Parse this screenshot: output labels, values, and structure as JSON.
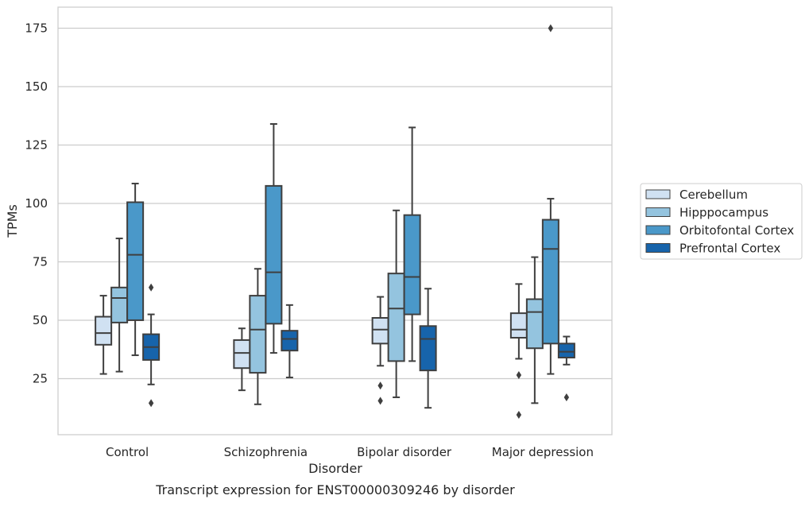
{
  "chart_data": {
    "type": "boxplot",
    "caption": "Transcript expression for ENST00000309246 by disorder",
    "xlabel": "Disorder",
    "ylabel": "TPMs",
    "ylim": [
      1,
      184
    ],
    "yticks": [
      25,
      50,
      75,
      100,
      125,
      150,
      175
    ],
    "grid": true,
    "legend_position": "right",
    "categories": [
      "Control",
      "Schizophrenia",
      "Bipolar disorder",
      "Major depression"
    ],
    "series": [
      {
        "name": "Cerebellum",
        "color": "#d0e1f2",
        "boxes": [
          {
            "whisker_low": 27,
            "q1": 39.5,
            "median": 44.5,
            "q3": 51.5,
            "whisker_high": 60.5,
            "outliers": []
          },
          {
            "whisker_low": 20,
            "q1": 29.5,
            "median": 36,
            "q3": 41.5,
            "whisker_high": 46.5,
            "outliers": []
          },
          {
            "whisker_low": 30.5,
            "q1": 40,
            "median": 46,
            "q3": 51,
            "whisker_high": 60,
            "outliers": [
              22,
              15.5
            ]
          },
          {
            "whisker_low": 33.5,
            "q1": 42.5,
            "median": 46,
            "q3": 53,
            "whisker_high": 65.5,
            "outliers": [
              26.5,
              9.5
            ]
          }
        ]
      },
      {
        "name": "Hipppocampus",
        "color": "#94c4df",
        "boxes": [
          {
            "whisker_low": 28,
            "q1": 49,
            "median": 59.5,
            "q3": 64,
            "whisker_high": 85,
            "outliers": []
          },
          {
            "whisker_low": 14,
            "q1": 27.5,
            "median": 46,
            "q3": 60.5,
            "whisker_high": 72,
            "outliers": []
          },
          {
            "whisker_low": 17,
            "q1": 32.5,
            "median": 55,
            "q3": 70,
            "whisker_high": 97,
            "outliers": []
          },
          {
            "whisker_low": 14.5,
            "q1": 38,
            "median": 53.5,
            "q3": 59,
            "whisker_high": 77,
            "outliers": []
          }
        ]
      },
      {
        "name": "Orbitofontal Cortex",
        "color": "#4a98c9",
        "boxes": [
          {
            "whisker_low": 35,
            "q1": 50,
            "median": 78,
            "q3": 100.5,
            "whisker_high": 108.5,
            "outliers": []
          },
          {
            "whisker_low": 36,
            "q1": 48.5,
            "median": 70.5,
            "q3": 107.5,
            "whisker_high": 134,
            "outliers": []
          },
          {
            "whisker_low": 32.5,
            "q1": 52.5,
            "median": 68.5,
            "q3": 95,
            "whisker_high": 132.5,
            "outliers": []
          },
          {
            "whisker_low": 27,
            "q1": 40,
            "median": 80.5,
            "q3": 93,
            "whisker_high": 102,
            "outliers": [
              175
            ]
          }
        ]
      },
      {
        "name": "Prefrontal Cortex",
        "color": "#1764ab",
        "boxes": [
          {
            "whisker_low": 22.5,
            "q1": 33,
            "median": 38.5,
            "q3": 44,
            "whisker_high": 52.5,
            "outliers": [
              64,
              14.5
            ]
          },
          {
            "whisker_low": 25.5,
            "q1": 37,
            "median": 42,
            "q3": 45.5,
            "whisker_high": 56.5,
            "outliers": []
          },
          {
            "whisker_low": 12.5,
            "q1": 28.5,
            "median": 42,
            "q3": 47.5,
            "whisker_high": 63.5,
            "outliers": []
          },
          {
            "whisker_low": 31,
            "q1": 34,
            "median": 36.5,
            "q3": 40,
            "whisker_high": 43,
            "outliers": [
              17
            ]
          }
        ]
      }
    ]
  }
}
